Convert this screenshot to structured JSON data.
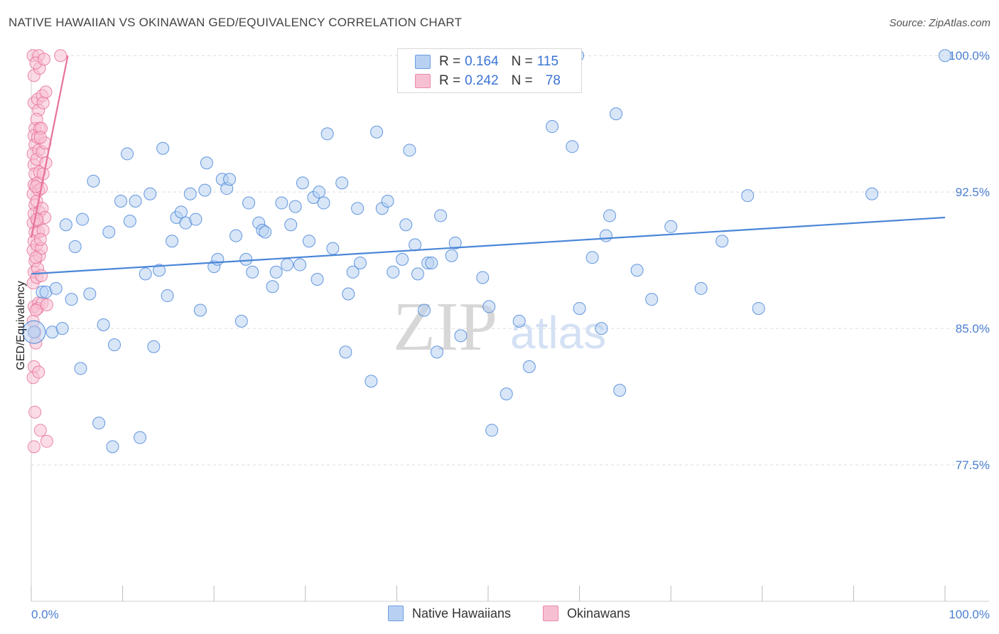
{
  "title": "NATIVE HAWAIIAN VS OKINAWAN GED/EQUIVALENCY CORRELATION CHART",
  "source": "Source: ZipAtlas.com",
  "colors": {
    "blue": "#4a86d8",
    "blue_fill": "#b8d1f3",
    "pink": "#e8729a",
    "pink_fill": "#f7c0d2",
    "tick": "#4a7fd0"
  },
  "legend": {
    "rows": [
      {
        "r_label": "R = ",
        "r_value": "0.164",
        "n_label": "N = ",
        "n_value": "115"
      },
      {
        "r_label": "R = ",
        "r_value": "0.242",
        "n_label": "N = ",
        "n_value": "78"
      }
    ]
  },
  "bottom_legend": [
    "Native Hawaiians",
    "Okinawans"
  ],
  "watermark": {
    "zip": "ZIP",
    "atlas": "atlas"
  },
  "chart_data": {
    "type": "scatter",
    "xlabel": "",
    "ylabel": "GED/Equivalency",
    "xlim": [
      0,
      100
    ],
    "ylim": [
      70,
      100.4
    ],
    "x_tick_labels": [
      "0.0%",
      "100.0%"
    ],
    "y_ticks": [
      77.5,
      85.0,
      92.5,
      100.0
    ],
    "y_tick_labels": [
      "77.5%",
      "85.0%",
      "92.5%",
      "100.0%"
    ],
    "series": [
      {
        "name": "Native Hawaiians",
        "color": "#4a86d8",
        "trend": {
          "x": [
            0,
            100
          ],
          "y": [
            88.0,
            91.1
          ]
        },
        "points": [
          [
            0.3,
            84.8
          ],
          [
            1.2,
            87.0
          ],
          [
            1.6,
            87.0
          ],
          [
            2.3,
            84.8
          ],
          [
            2.7,
            87.2
          ],
          [
            3.4,
            85.0
          ],
          [
            3.8,
            90.7
          ],
          [
            4.4,
            86.6
          ],
          [
            4.8,
            89.5
          ],
          [
            5.4,
            82.8
          ],
          [
            5.6,
            91.0
          ],
          [
            6.4,
            86.9
          ],
          [
            6.8,
            93.1
          ],
          [
            7.4,
            79.8
          ],
          [
            7.9,
            85.2
          ],
          [
            8.5,
            90.3
          ],
          [
            8.9,
            78.5
          ],
          [
            9.1,
            84.1
          ],
          [
            9.8,
            92.0
          ],
          [
            10.5,
            94.6
          ],
          [
            10.8,
            90.9
          ],
          [
            11.4,
            92.0
          ],
          [
            11.9,
            79.0
          ],
          [
            12.5,
            88.0
          ],
          [
            13.0,
            92.4
          ],
          [
            13.4,
            84.0
          ],
          [
            14.0,
            88.2
          ],
          [
            14.4,
            94.9
          ],
          [
            14.9,
            86.8
          ],
          [
            15.4,
            89.8
          ],
          [
            15.9,
            91.1
          ],
          [
            16.4,
            91.4
          ],
          [
            16.9,
            90.8
          ],
          [
            17.4,
            92.4
          ],
          [
            18.0,
            91.0
          ],
          [
            18.5,
            86.0
          ],
          [
            19.0,
            92.6
          ],
          [
            19.2,
            94.1
          ],
          [
            20.0,
            88.4
          ],
          [
            20.4,
            88.8
          ],
          [
            20.9,
            93.2
          ],
          [
            21.4,
            92.7
          ],
          [
            21.7,
            93.2
          ],
          [
            22.4,
            90.1
          ],
          [
            23.0,
            85.4
          ],
          [
            23.5,
            88.8
          ],
          [
            23.8,
            91.9
          ],
          [
            24.2,
            88.1
          ],
          [
            24.9,
            90.8
          ],
          [
            25.3,
            90.4
          ],
          [
            25.6,
            90.3
          ],
          [
            26.4,
            87.3
          ],
          [
            26.8,
            88.1
          ],
          [
            27.4,
            91.9
          ],
          [
            28.0,
            88.5
          ],
          [
            28.4,
            90.7
          ],
          [
            28.9,
            91.7
          ],
          [
            29.4,
            88.5
          ],
          [
            29.7,
            93.0
          ],
          [
            30.4,
            89.8
          ],
          [
            30.9,
            92.2
          ],
          [
            31.3,
            87.7
          ],
          [
            31.5,
            92.5
          ],
          [
            32.0,
            91.9
          ],
          [
            32.4,
            95.7
          ],
          [
            33.0,
            89.4
          ],
          [
            34.0,
            93.0
          ],
          [
            34.4,
            83.7
          ],
          [
            34.7,
            86.9
          ],
          [
            35.2,
            88.1
          ],
          [
            35.7,
            91.6
          ],
          [
            36.0,
            88.6
          ],
          [
            37.2,
            82.1
          ],
          [
            37.8,
            95.8
          ],
          [
            38.4,
            91.6
          ],
          [
            39.0,
            92.0
          ],
          [
            39.6,
            88.1
          ],
          [
            40.6,
            88.8
          ],
          [
            41.0,
            90.7
          ],
          [
            41.4,
            94.8
          ],
          [
            42.0,
            89.6
          ],
          [
            42.3,
            88.0
          ],
          [
            43.0,
            86.0
          ],
          [
            43.4,
            88.6
          ],
          [
            43.8,
            88.6
          ],
          [
            44.4,
            83.7
          ],
          [
            44.8,
            91.2
          ],
          [
            46.0,
            89.0
          ],
          [
            46.4,
            89.7
          ],
          [
            47.0,
            84.6
          ],
          [
            49.4,
            87.8
          ],
          [
            50.4,
            79.4
          ],
          [
            52.0,
            81.4
          ],
          [
            53.4,
            85.4
          ],
          [
            54.5,
            82.9
          ],
          [
            57.0,
            96.1
          ],
          [
            59.2,
            95.0
          ],
          [
            60.0,
            86.1
          ],
          [
            61.4,
            88.9
          ],
          [
            62.4,
            85.0
          ],
          [
            62.9,
            90.1
          ],
          [
            63.3,
            91.2
          ],
          [
            64.0,
            96.8
          ],
          [
            64.4,
            81.6
          ],
          [
            66.3,
            88.2
          ],
          [
            67.9,
            86.6
          ],
          [
            70.0,
            90.6
          ],
          [
            73.3,
            87.2
          ],
          [
            75.6,
            89.8
          ],
          [
            78.4,
            92.3
          ],
          [
            79.6,
            86.1
          ],
          [
            92.0,
            92.4
          ],
          [
            100.0,
            100.0
          ],
          [
            59.8,
            100.0
          ],
          [
            50.1,
            86.2
          ]
        ]
      },
      {
        "name": "Okinawans",
        "color": "#e8729a",
        "trend": {
          "x": [
            0.0,
            4.0
          ],
          "y": [
            90.0,
            100.0
          ]
        },
        "points": [
          [
            0.2,
            100.0
          ],
          [
            0.3,
            98.9
          ],
          [
            0.3,
            97.4
          ],
          [
            0.4,
            96.0
          ],
          [
            0.3,
            95.6
          ],
          [
            0.4,
            95.1
          ],
          [
            0.2,
            94.6
          ],
          [
            0.3,
            94.0
          ],
          [
            0.4,
            93.5
          ],
          [
            0.3,
            92.9
          ],
          [
            0.2,
            92.4
          ],
          [
            0.4,
            91.8
          ],
          [
            0.3,
            91.3
          ],
          [
            0.2,
            90.8
          ],
          [
            0.4,
            90.3
          ],
          [
            0.3,
            89.8
          ],
          [
            0.2,
            89.3
          ],
          [
            0.4,
            88.7
          ],
          [
            0.3,
            88.1
          ],
          [
            0.2,
            87.5
          ],
          [
            0.3,
            86.2
          ],
          [
            0.2,
            85.4
          ],
          [
            0.4,
            84.8
          ],
          [
            0.3,
            82.9
          ],
          [
            0.2,
            82.3
          ],
          [
            0.4,
            80.4
          ],
          [
            0.3,
            78.5
          ],
          [
            0.8,
            100.0
          ],
          [
            0.9,
            99.3
          ],
          [
            0.7,
            97.6
          ],
          [
            0.8,
            97.0
          ],
          [
            0.6,
            96.5
          ],
          [
            0.9,
            96.0
          ],
          [
            0.7,
            95.5
          ],
          [
            0.8,
            94.8
          ],
          [
            0.6,
            94.3
          ],
          [
            0.9,
            93.6
          ],
          [
            0.7,
            93.0
          ],
          [
            0.8,
            92.6
          ],
          [
            0.6,
            92.0
          ],
          [
            0.9,
            91.4
          ],
          [
            0.7,
            90.9
          ],
          [
            0.8,
            90.3
          ],
          [
            0.6,
            89.6
          ],
          [
            0.9,
            89.0
          ],
          [
            0.7,
            88.3
          ],
          [
            0.8,
            86.4
          ],
          [
            0.7,
            86.1
          ],
          [
            0.8,
            82.6
          ],
          [
            1.0,
            79.4
          ],
          [
            1.2,
            97.8
          ],
          [
            1.3,
            97.4
          ],
          [
            1.1,
            96.0
          ],
          [
            1.2,
            94.7
          ],
          [
            1.3,
            93.5
          ],
          [
            1.1,
            92.7
          ],
          [
            1.2,
            91.6
          ],
          [
            1.3,
            90.4
          ],
          [
            1.1,
            89.4
          ],
          [
            1.2,
            86.4
          ],
          [
            1.6,
            98.0
          ],
          [
            1.5,
            95.2
          ],
          [
            1.6,
            94.1
          ],
          [
            1.5,
            91.1
          ],
          [
            1.7,
            86.3
          ],
          [
            1.7,
            78.8
          ],
          [
            3.2,
            100.0
          ],
          [
            0.5,
            99.6
          ],
          [
            1.4,
            99.8
          ],
          [
            0.5,
            92.8
          ],
          [
            0.6,
            91.0
          ],
          [
            0.5,
            88.9
          ],
          [
            0.6,
            87.8
          ],
          [
            0.5,
            86.0
          ],
          [
            0.5,
            84.2
          ],
          [
            1.0,
            95.5
          ],
          [
            1.0,
            89.9
          ],
          [
            1.1,
            87.9
          ]
        ]
      }
    ]
  }
}
